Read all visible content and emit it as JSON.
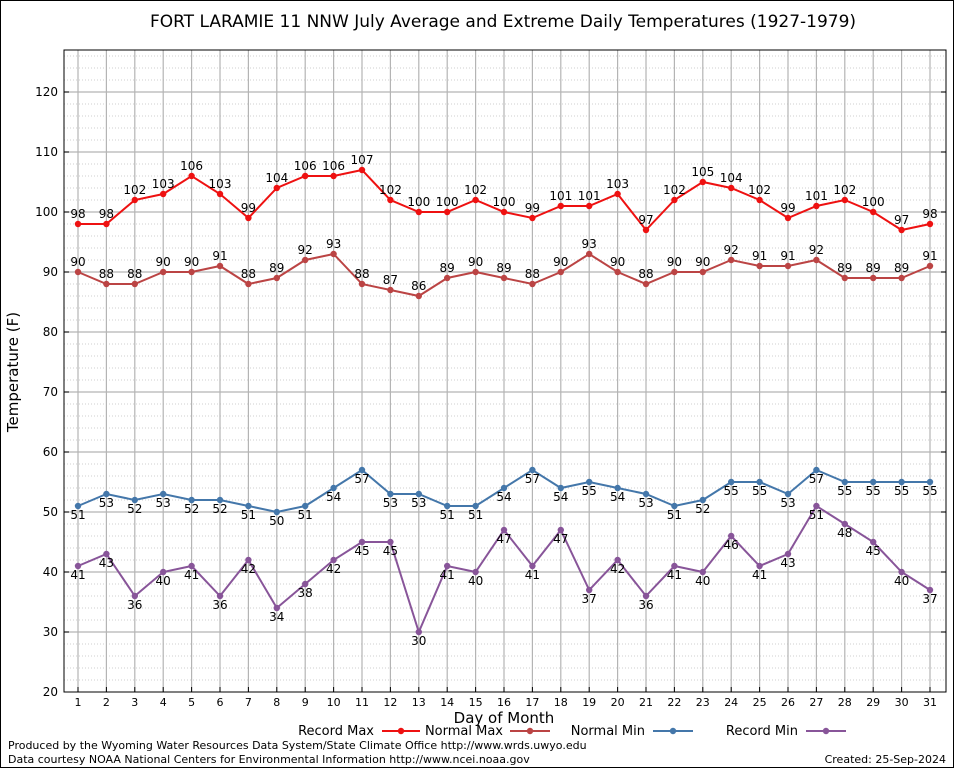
{
  "footer": {
    "produced_by": "Produced by the Wyoming Water Resources Data System/State Climate Office http://www.wrds.uwyo.edu",
    "courtesy": "Data courtesy NOAA National Centers for Environmental Information http://www.ncei.noaa.gov",
    "created": "Created:  25-Sep-2024"
  },
  "chart_data": {
    "type": "line",
    "title": "FORT LARAMIE 11 NNW July Average and Extreme Daily Temperatures (1927-1979)",
    "xlabel": "Day of Month",
    "ylabel": "Temperature (F)",
    "ylim": [
      20,
      127
    ],
    "yticks": [
      20,
      30,
      40,
      50,
      60,
      70,
      80,
      90,
      100,
      110,
      120
    ],
    "grid": true,
    "legend_position": "bottom",
    "categories": [
      "1",
      "2",
      "3",
      "4",
      "5",
      "6",
      "7",
      "8",
      "9",
      "10",
      "11",
      "12",
      "13",
      "14",
      "15",
      "16",
      "17",
      "18",
      "19",
      "20",
      "21",
      "22",
      "23",
      "24",
      "25",
      "26",
      "27",
      "28",
      "29",
      "30",
      "31"
    ],
    "series": [
      {
        "name": "Record Max",
        "color": "#ee1111",
        "values": [
          98,
          98,
          102,
          103,
          106,
          103,
          99,
          104,
          106,
          106,
          107,
          102,
          100,
          100,
          102,
          100,
          99,
          101,
          101,
          103,
          97,
          102,
          105,
          104,
          102,
          99,
          101,
          102,
          100,
          97,
          98
        ]
      },
      {
        "name": "Normal Max",
        "color": "#bb4444",
        "values": [
          90,
          88,
          88,
          90,
          90,
          91,
          88,
          89,
          92,
          93,
          88,
          87,
          86,
          89,
          90,
          89,
          88,
          90,
          93,
          90,
          88,
          90,
          90,
          92,
          91,
          91,
          92,
          89,
          89,
          89,
          91
        ]
      },
      {
        "name": "Normal Min",
        "color": "#4477aa",
        "values": [
          51,
          53,
          52,
          53,
          52,
          52,
          51,
          50,
          51,
          54,
          57,
          53,
          53,
          51,
          51,
          54,
          57,
          54,
          55,
          54,
          53,
          51,
          52,
          55,
          55,
          53,
          57,
          55,
          55,
          55,
          55
        ]
      },
      {
        "name": "Record Min",
        "color": "#885599",
        "values": [
          41,
          43,
          36,
          40,
          41,
          36,
          42,
          34,
          38,
          42,
          45,
          45,
          30,
          41,
          40,
          47,
          41,
          47,
          37,
          42,
          36,
          41,
          40,
          46,
          41,
          43,
          51,
          48,
          45,
          40,
          37
        ]
      }
    ]
  }
}
